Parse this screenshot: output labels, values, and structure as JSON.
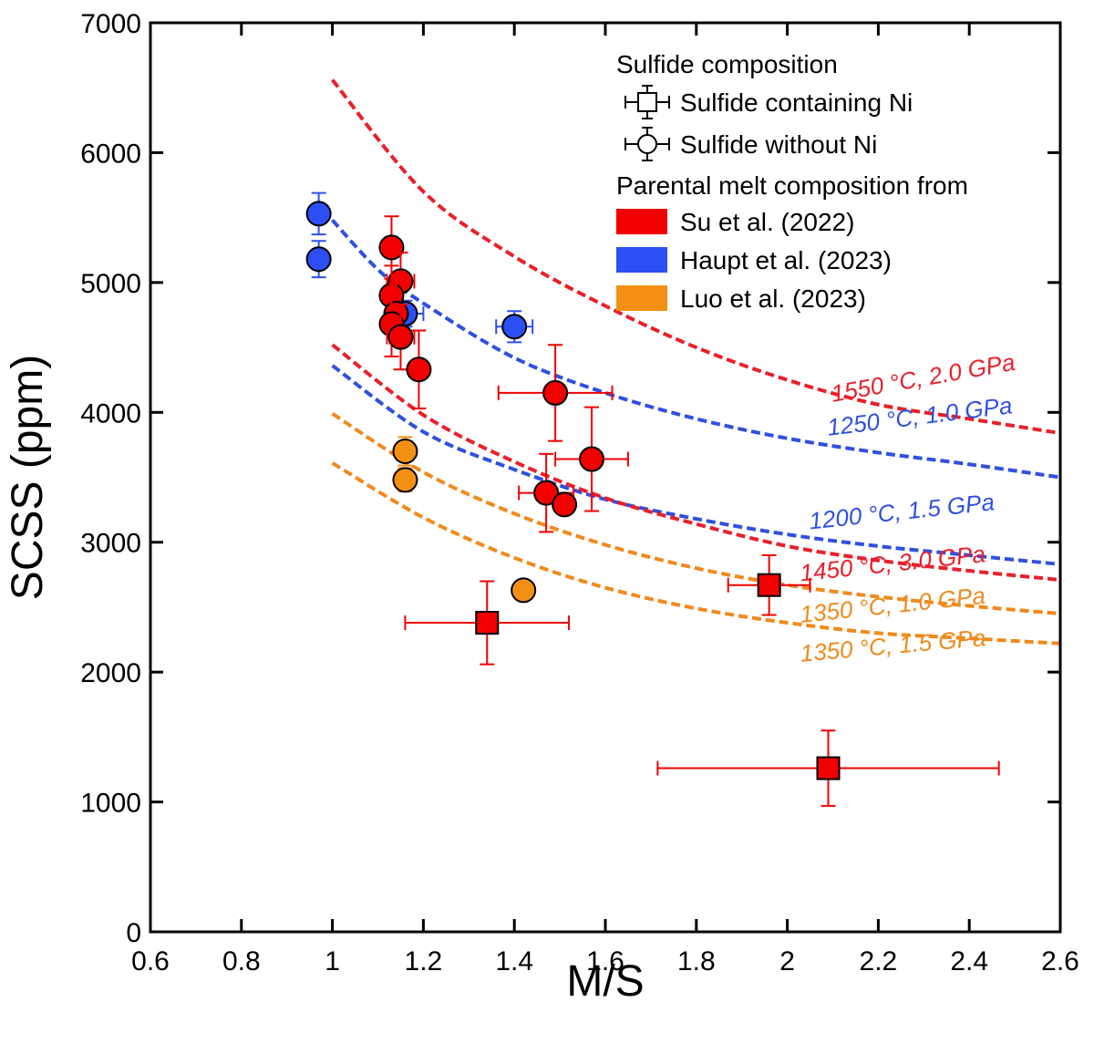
{
  "chart_data": {
    "type": "scatter",
    "xlabel": "M/S",
    "ylabel": "SCSS (ppm)",
    "xlim": [
      0.6,
      2.6
    ],
    "ylim": [
      0,
      7000
    ],
    "x_ticks": [
      0.6,
      0.8,
      1,
      1.2,
      1.4,
      1.6,
      1.8,
      2,
      2.2,
      2.4,
      2.6
    ],
    "x_tick_labels": [
      "0.6",
      "0.8",
      "1",
      "1.2",
      "1.4",
      "1.6",
      "1.8",
      "2",
      "2.2",
      "2.4",
      "2.6"
    ],
    "y_ticks": [
      0,
      1000,
      2000,
      3000,
      4000,
      5000,
      6000,
      7000
    ],
    "y_tick_labels": [
      "0",
      "1000",
      "2000",
      "3000",
      "4000",
      "5000",
      "6000",
      "7000"
    ],
    "grid": false,
    "legend": {
      "placement": "top-right",
      "title_shape": "Sulfide composition",
      "shape_entries": [
        {
          "label": "Sulfide containing Ni",
          "marker": "square"
        },
        {
          "label": "Sulfide without Ni",
          "marker": "circle"
        }
      ],
      "title_color": "Parental melt composition from",
      "color_entries": [
        {
          "label": "Su et al. (2022)",
          "color": "#f20000"
        },
        {
          "label": "Haupt et al. (2023)",
          "color": "#2c4ff5"
        },
        {
          "label": "Luo et al. (2023)",
          "color": "#f39014"
        }
      ]
    },
    "colors": {
      "red": "#f20000",
      "blue": "#2c4ff5",
      "orange": "#f39014",
      "curve_red": "#e8202a",
      "curve_blue": "#3050e0",
      "curve_orange": "#f08a1c"
    },
    "curves": [
      {
        "label": "1550 °C, 2.0 GPa",
        "color": "#e8202a",
        "x": [
          1.0,
          1.2,
          1.4,
          1.6,
          1.8,
          2.0,
          2.2,
          2.4,
          2.6
        ],
        "y": [
          6560,
          5700,
          5200,
          4820,
          4500,
          4250,
          4060,
          3950,
          3840
        ]
      },
      {
        "label": "1250 °C, 1.0 GPa",
        "color": "#3050e0",
        "x": [
          0.98,
          1.1,
          1.2,
          1.4,
          1.6,
          1.8,
          2.0,
          2.2,
          2.4,
          2.6
        ],
        "y": [
          5560,
          5100,
          4840,
          4420,
          4150,
          3950,
          3800,
          3690,
          3600,
          3500
        ]
      },
      {
        "label": "1200 °C, 1.5 GPa",
        "color": "#3050e0",
        "x": [
          1.0,
          1.2,
          1.4,
          1.6,
          1.8,
          2.0,
          2.2,
          2.4,
          2.6
        ],
        "y": [
          4360,
          3850,
          3560,
          3330,
          3180,
          3060,
          2970,
          2900,
          2830
        ]
      },
      {
        "label": "1450 °C, 3.0 GPa",
        "color": "#e8202a",
        "x": [
          1.0,
          1.2,
          1.4,
          1.6,
          1.8,
          2.0,
          2.2,
          2.4,
          2.6
        ],
        "y": [
          4520,
          3980,
          3620,
          3340,
          3140,
          2970,
          2860,
          2780,
          2710
        ]
      },
      {
        "label": "1350 °C, 1.0 GPa",
        "color": "#f08a1c",
        "x": [
          1.0,
          1.2,
          1.4,
          1.6,
          1.8,
          2.0,
          2.2,
          2.4,
          2.6
        ],
        "y": [
          3990,
          3540,
          3220,
          2980,
          2800,
          2670,
          2580,
          2510,
          2450
        ]
      },
      {
        "label": "1350 °C, 1.5 GPa",
        "color": "#f08a1c",
        "x": [
          1.0,
          1.2,
          1.4,
          1.6,
          1.8,
          2.0,
          2.2,
          2.4,
          2.6
        ],
        "y": [
          3610,
          3190,
          2880,
          2650,
          2490,
          2380,
          2300,
          2260,
          2220
        ]
      }
    ],
    "curve_labels": [
      {
        "text": "1550 °C, 2.0 GPa",
        "x": 2.1,
        "y": 4080,
        "angle": -10,
        "color": "#e8202a"
      },
      {
        "text": "1250 °C, 1.0 GPa",
        "x": 2.09,
        "y": 3820,
        "angle": -7,
        "color": "#3050e0"
      },
      {
        "text": "1200 °C, 1.5 GPa",
        "x": 2.05,
        "y": 3100,
        "angle": -6,
        "color": "#3050e0"
      },
      {
        "text": "1450 °C, 3.0 GPa",
        "x": 2.03,
        "y": 2700,
        "angle": -6,
        "color": "#e8202a"
      },
      {
        "text": "1350 °C, 1.0 GPa",
        "x": 2.03,
        "y": 2380,
        "angle": -6,
        "color": "#f08a1c"
      },
      {
        "text": "1350 °C, 1.5 GPa",
        "x": 2.03,
        "y": 2080,
        "angle": -5,
        "color": "#f08a1c"
      }
    ],
    "points": [
      {
        "series": "Haupt et al. (2023)",
        "color": "#2c4ff5",
        "marker": "circle",
        "x": 0.97,
        "y": 5530,
        "xerr": 0.015,
        "yerr": 160
      },
      {
        "series": "Haupt et al. (2023)",
        "color": "#2c4ff5",
        "marker": "circle",
        "x": 0.97,
        "y": 5180,
        "xerr": 0.015,
        "yerr": 140
      },
      {
        "series": "Haupt et al. (2023)",
        "color": "#2c4ff5",
        "marker": "circle",
        "x": 1.16,
        "y": 4760,
        "xerr": 0.04,
        "yerr": 100
      },
      {
        "series": "Haupt et al. (2023)",
        "color": "#2c4ff5",
        "marker": "circle",
        "x": 1.4,
        "y": 4660,
        "xerr": 0.04,
        "yerr": 120
      },
      {
        "series": "Su et al. (2022)",
        "color": "#f20000",
        "marker": "circle",
        "x": 1.13,
        "y": 5270,
        "xerr": 0.02,
        "yerr": 240
      },
      {
        "series": "Su et al. (2022)",
        "color": "#f20000",
        "marker": "circle",
        "x": 1.15,
        "y": 5010,
        "xerr": 0.03,
        "yerr": 220
      },
      {
        "series": "Su et al. (2022)",
        "color": "#f20000",
        "marker": "circle",
        "x": 1.13,
        "y": 4900,
        "xerr": 0.02,
        "yerr": 230
      },
      {
        "series": "Su et al. (2022)",
        "color": "#f20000",
        "marker": "circle",
        "x": 1.14,
        "y": 4760,
        "xerr": 0.02,
        "yerr": 230
      },
      {
        "series": "Su et al. (2022)",
        "color": "#f20000",
        "marker": "circle",
        "x": 1.13,
        "y": 4680,
        "xerr": 0.02,
        "yerr": 250
      },
      {
        "series": "Su et al. (2022)",
        "color": "#f20000",
        "marker": "circle",
        "x": 1.15,
        "y": 4580,
        "xerr": 0.03,
        "yerr": 250
      },
      {
        "series": "Su et al. (2022)",
        "color": "#f20000",
        "marker": "circle",
        "x": 1.19,
        "y": 4330,
        "xerr": 0.02,
        "yerr": 300
      },
      {
        "series": "Su et al. (2022)",
        "color": "#f20000",
        "marker": "circle",
        "x": 1.49,
        "y": 4150,
        "xerr": 0.125,
        "yerr": 370
      },
      {
        "series": "Su et al. (2022)",
        "color": "#f20000",
        "marker": "circle",
        "x": 1.57,
        "y": 3640,
        "xerr": 0.08,
        "yerr": 400
      },
      {
        "series": "Su et al. (2022)",
        "color": "#f20000",
        "marker": "circle",
        "x": 1.47,
        "y": 3380,
        "xerr": 0.06,
        "yerr": 300
      },
      {
        "series": "Su et al. (2022)",
        "color": "#f20000",
        "marker": "circle",
        "x": 1.51,
        "y": 3290,
        "xerr": 0.02,
        "yerr": 60
      },
      {
        "series": "Su et al. (2022)",
        "color": "#f20000",
        "marker": "square",
        "x": 1.34,
        "y": 2380,
        "xerr": 0.18,
        "yerr": 320
      },
      {
        "series": "Su et al. (2022)",
        "color": "#f20000",
        "marker": "square",
        "x": 1.96,
        "y": 2670,
        "xerr": 0.09,
        "yerr": 230
      },
      {
        "series": "Su et al. (2022)",
        "color": "#f20000",
        "marker": "square",
        "x": 2.09,
        "y": 1260,
        "xerr": 0.375,
        "yerr": 290
      },
      {
        "series": "Luo et al. (2023)",
        "color": "#f39014",
        "marker": "circle",
        "x": 1.16,
        "y": 3700,
        "xerr": 0.015,
        "yerr": 110
      },
      {
        "series": "Luo et al. (2023)",
        "color": "#f39014",
        "marker": "circle",
        "x": 1.16,
        "y": 3480,
        "xerr": 0.015,
        "yerr": 90
      },
      {
        "series": "Luo et al. (2023)",
        "color": "#f39014",
        "marker": "circle",
        "x": 1.42,
        "y": 2630,
        "xerr": 0.02,
        "yerr": 40
      }
    ]
  }
}
